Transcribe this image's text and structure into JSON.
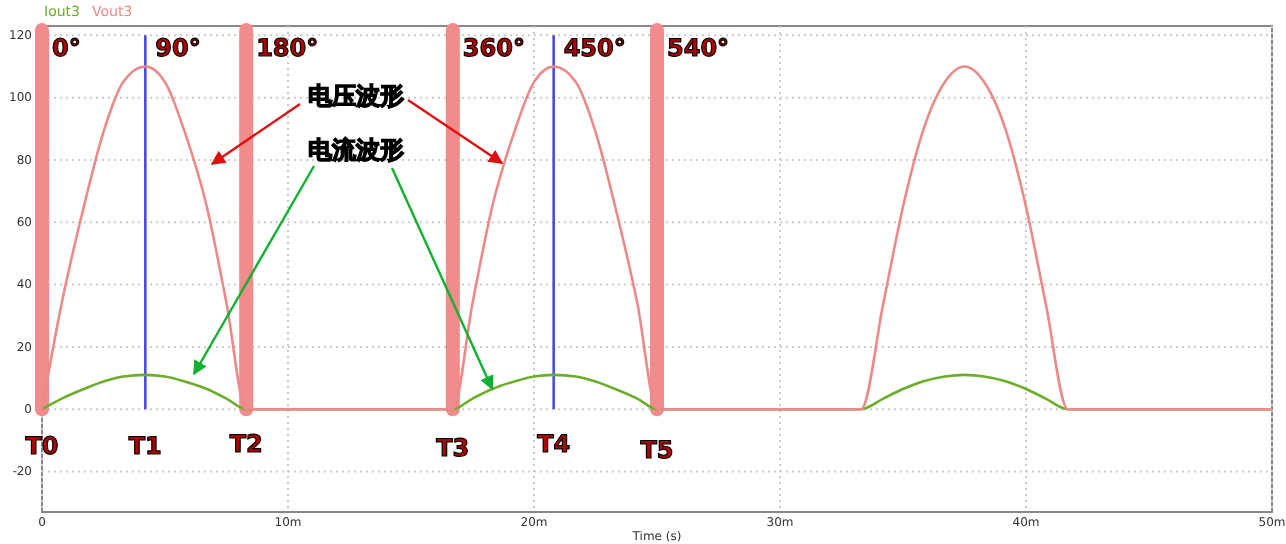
{
  "chart_data": {
    "type": "line",
    "xlabel": "Time (s)",
    "x": [
      0,
      0.8,
      1.7,
      2.5,
      3.3,
      4.2,
      5,
      5.8,
      6.7,
      7.5,
      8.3,
      16.7,
      17.5,
      18.3,
      19.2,
      20,
      20.8,
      21.7,
      22.5,
      23.3,
      24.2,
      25,
      33.3,
      34.2,
      35,
      35.8,
      36.7,
      37.5,
      38.3,
      39.2,
      40,
      40.8,
      41.7,
      50
    ],
    "series": [
      {
        "name": "Iout3",
        "color": "#6aae2a",
        "values": [
          0,
          3.4,
          6.5,
          8.9,
          10.5,
          11,
          10.5,
          8.9,
          6.5,
          3.4,
          0,
          0,
          3.4,
          6.5,
          8.9,
          10.5,
          11,
          10.5,
          8.9,
          6.5,
          3.4,
          0,
          0,
          3.4,
          6.5,
          8.9,
          10.5,
          11,
          10.5,
          8.9,
          6.5,
          3.4,
          0,
          0
        ]
      },
      {
        "name": "Vout3",
        "color": "#ec8a8a",
        "values": [
          0,
          34,
          65,
          89,
          105,
          110,
          105,
          89,
          65,
          34,
          0,
          0,
          34,
          65,
          89,
          105,
          110,
          105,
          89,
          65,
          34,
          0,
          0,
          34,
          65,
          89,
          105,
          110,
          105,
          89,
          65,
          34,
          0,
          0
        ]
      }
    ],
    "xlim": [
      0,
      50
    ],
    "xticks": [
      0,
      {
        "value": 10,
        "label": "10m"
      },
      {
        "value": 20,
        "label": "20m"
      },
      {
        "value": 30,
        "label": "30m"
      },
      {
        "value": 40,
        "label": "40m"
      },
      {
        "value": 50,
        "label": "50m"
      }
    ],
    "ylim": [
      -33,
      123
    ],
    "yticks": [
      -20,
      0,
      20,
      40,
      60,
      80,
      100,
      120
    ],
    "grid": true,
    "legend": "top left",
    "ref_lines": [
      {
        "axis": "x",
        "value": 0,
        "color": "#f28b8b",
        "line_style": "solid"
      },
      {
        "axis": "x",
        "value": 4.2,
        "color": "#4a4ae0",
        "line_style": "solid"
      },
      {
        "axis": "x",
        "value": 8.3,
        "color": "#f28b8b",
        "line_style": "solid"
      },
      {
        "axis": "x",
        "value": 16.7,
        "color": "#f28b8b",
        "line_style": "solid"
      },
      {
        "axis": "x",
        "value": 20.8,
        "color": "#4a4ae0",
        "line_style": "solid"
      },
      {
        "axis": "x",
        "value": 25,
        "color": "#f28b8b",
        "line_style": "solid"
      }
    ],
    "annotations": [
      {
        "text": "电压波形",
        "x": 18.7,
        "y": 79
      },
      {
        "text": "电流波形",
        "x": 18.3,
        "y": 6.5
      },
      "0°",
      "90°",
      "180°",
      "360°",
      "450°",
      "540°",
      "T0",
      "T1",
      "T2",
      "T3",
      "T4",
      "T5"
    ]
  }
}
